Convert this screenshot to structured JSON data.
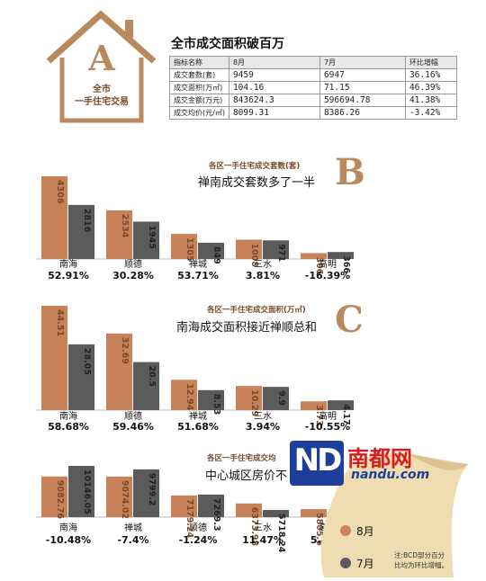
{
  "colors": {
    "aug": "#c8825a",
    "jul": "#5b5b5b",
    "brand_red": "#d71d1d",
    "brand_blue": "#1e3f99"
  },
  "section_a": {
    "letter": "A",
    "house_line1": "全市",
    "house_line2": "一手住宅交易",
    "title": "全市成交面积破百万",
    "table": {
      "headers": [
        "指标名称",
        "8月",
        "7月",
        "环比增幅"
      ],
      "rows": [
        [
          "成交套数(套)",
          "9459",
          "6947",
          "36.16%"
        ],
        [
          "成交面积(万㎡)",
          "104.16",
          "71.15",
          "46.39%"
        ],
        [
          "成交金额(万元)",
          "843624.3",
          "596694.78",
          "41.38%"
        ],
        [
          "成交均价(元/㎡)",
          "8099.31",
          "8386.26",
          "-3.42%"
        ]
      ]
    }
  },
  "section_b": {
    "letter": "B",
    "subtitle": "各区一手住宅成交套数(套)",
    "title": "禅南成交套数多了一半"
  },
  "section_c": {
    "letter": "C",
    "subtitle": "各区一手住宅成交面积(万㎡)",
    "title": "南海成交面积接近禅顺总和"
  },
  "section_d": {
    "subtitle": "各区一手住宅成交均",
    "title": "中心城区房价不"
  },
  "legend": {
    "aug": "8月",
    "jul": "7月",
    "note_line1": "注:BCD部分百分",
    "note_line2": "比均为环比增幅。"
  },
  "watermark": {
    "logo": "ND",
    "name": "南都网",
    "url": "nandu.com"
  },
  "chart_data": [
    {
      "type": "bar",
      "title": "各区一手住宅成交套数(套)",
      "categories": [
        "南海",
        "顺德",
        "禅城",
        "三水",
        "高明"
      ],
      "series": [
        {
          "name": "8月",
          "values": [
            4306,
            2534,
            1305,
            1008,
            306
          ]
        },
        {
          "name": "7月",
          "values": [
            2816,
            1945,
            849,
            971,
            366
          ]
        }
      ],
      "value_labels": [
        [
          "4306",
          "2534",
          "1305",
          "1008",
          "306"
        ],
        [
          "2816",
          "1945",
          "849",
          "971",
          "366"
        ]
      ],
      "changes": [
        "52.91%",
        "30.28%",
        "53.71%",
        "3.81%",
        "-16.39%"
      ]
    },
    {
      "type": "bar",
      "title": "各区一手住宅成交面积(万㎡)",
      "categories": [
        "南海",
        "顺德",
        "禅城",
        "三水",
        "高明"
      ],
      "series": [
        {
          "name": "8月",
          "values": [
            44.51,
            32.69,
            12.94,
            10.29,
            3.73
          ]
        },
        {
          "name": "7月",
          "values": [
            28.05,
            20.5,
            8.53,
            9.9,
            4.17
          ]
        }
      ],
      "value_labels": [
        [
          "44.51",
          "32.69",
          "12.94",
          "10.29",
          "3.73"
        ],
        [
          "28.05",
          "20.5",
          "8.53",
          "9.9",
          "4.17"
        ]
      ],
      "changes": [
        "58.68%",
        "59.46%",
        "51.68%",
        "3.94%",
        "-10.55%"
      ]
    },
    {
      "type": "bar",
      "title": "各区一手住宅成交均",
      "categories": [
        "南海",
        "禅城",
        "顺德",
        "三水",
        "高明"
      ],
      "series": [
        {
          "name": "8月",
          "values": [
            9082.76,
            9074.02,
            7179.24,
            6373.98,
            5805.6
          ]
        },
        {
          "name": "7月",
          "values": [
            10146.05,
            9799.2,
            7269.3,
            5718.24,
            5483.52
          ]
        }
      ],
      "value_labels": [
        [
          "9082.76",
          "9074.02",
          "7179.24",
          "6373.98",
          "5805.6"
        ],
        [
          "10146.05",
          "9799.2",
          "7269.3",
          "5718.24",
          "5483.52"
        ]
      ],
      "changes": [
        "-10.48%",
        "-7.4%",
        "-1.24%",
        "11.47%",
        "5.87%"
      ]
    }
  ]
}
